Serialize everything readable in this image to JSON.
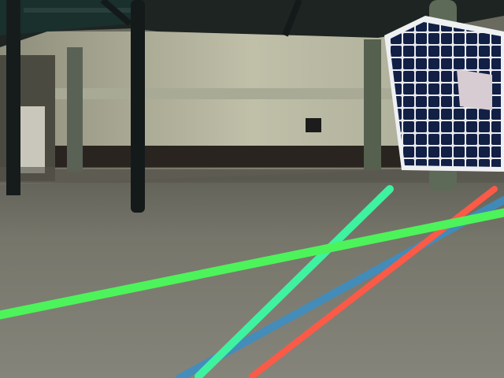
{
  "scene": {
    "description_tags": [
      "warehouse-floor",
      "table-legs",
      "solar-panel",
      "lane-lines"
    ],
    "colors": {
      "floor": "#7b7a6f",
      "wall": "#b9b9a2",
      "ceiling": "#1e2422",
      "table_top": "#1a2a28",
      "table_legs": "#141a1a",
      "pillar": "#5c6353",
      "solar_frame": "#f2f3f4",
      "solar_cell": "#0f1d3d",
      "line_green": "#4df35a",
      "line_mint": "#3ff2a0",
      "line_blue": "#3a8fc6",
      "line_red": "#fb5a47"
    }
  }
}
